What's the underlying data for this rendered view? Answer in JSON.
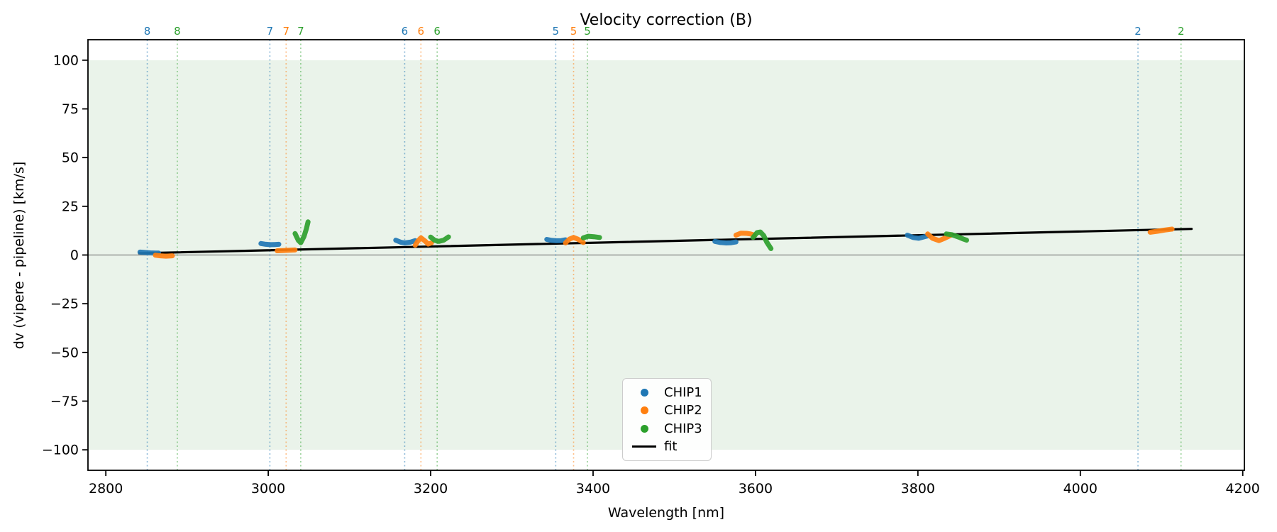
{
  "title": "Velocity correction (B)",
  "colors": {
    "chip1": "#1f77b4",
    "chip2": "#ff7f0e",
    "chip3": "#2ca02c",
    "fit": "#000000",
    "zero_line": "#808080",
    "band": "#eaf3ea",
    "frame": "#000000"
  },
  "legend": {
    "entries": [
      {
        "label": "CHIP1",
        "marker": "dot",
        "color": "#1f77b4"
      },
      {
        "label": "CHIP2",
        "marker": "dot",
        "color": "#ff7f0e"
      },
      {
        "label": "CHIP3",
        "marker": "dot",
        "color": "#2ca02c"
      },
      {
        "label": "fit",
        "marker": "line",
        "color": "#000000"
      }
    ]
  },
  "chart_data": {
    "type": "scatter",
    "title": "Velocity correction (B)",
    "xlabel": "Wavelength [nm]",
    "ylabel": "dv (vipere - pipeline) [km/s]",
    "xlim": [
      2778,
      4202
    ],
    "ylim": [
      -110.5,
      110.5
    ],
    "x_ticks": [
      2800,
      3000,
      3200,
      3400,
      3600,
      3800,
      4000,
      4200
    ],
    "y_ticks": [
      100,
      75,
      50,
      25,
      0,
      -25,
      -50,
      -75,
      -100
    ],
    "grid": false,
    "legend_position": "lower center",
    "shaded_band": {
      "ymin": -100,
      "ymax": 100,
      "color": "#eaf3ea"
    },
    "zero_line": {
      "y": 0,
      "color": "#808080"
    },
    "order_markers": [
      {
        "label": "8",
        "series": "CHIP1",
        "x": 2851
      },
      {
        "label": "8",
        "series": "CHIP3",
        "x": 2888
      },
      {
        "label": "7",
        "series": "CHIP1",
        "x": 3002
      },
      {
        "label": "7",
        "series": "CHIP2",
        "x": 3022
      },
      {
        "label": "7",
        "series": "CHIP3",
        "x": 3040
      },
      {
        "label": "6",
        "series": "CHIP1",
        "x": 3168
      },
      {
        "label": "6",
        "series": "CHIP2",
        "x": 3188
      },
      {
        "label": "6",
        "series": "CHIP3",
        "x": 3208
      },
      {
        "label": "5",
        "series": "CHIP1",
        "x": 3354
      },
      {
        "label": "5",
        "series": "CHIP2",
        "x": 3376
      },
      {
        "label": "5",
        "series": "CHIP3",
        "x": 3393
      },
      {
        "label": "2",
        "series": "CHIP1",
        "x": 4071
      },
      {
        "label": "2",
        "series": "CHIP3",
        "x": 4124
      }
    ],
    "series": [
      {
        "name": "CHIP1",
        "color": "#1f77b4",
        "segments": [
          [
            [
              2842,
              1.5
            ],
            [
              2848,
              1.3
            ],
            [
              2855,
              1.1
            ],
            [
              2861,
              1.0
            ],
            [
              2865,
              1.0
            ]
          ],
          [
            [
              2991,
              5.9
            ],
            [
              2997,
              5.5
            ],
            [
              3003,
              5.3
            ],
            [
              3008,
              5.4
            ],
            [
              3013,
              5.5
            ]
          ],
          [
            [
              3157,
              7.6
            ],
            [
              3163,
              6.6
            ],
            [
              3168,
              6.2
            ],
            [
              3175,
              6.6
            ],
            [
              3181,
              7.4
            ]
          ],
          [
            [
              3343,
              8.0
            ],
            [
              3349,
              7.5
            ],
            [
              3355,
              7.3
            ],
            [
              3361,
              7.4
            ],
            [
              3366,
              7.8
            ]
          ],
          [
            [
              3550,
              7.0
            ],
            [
              3557,
              6.4
            ],
            [
              3564,
              6.2
            ],
            [
              3570,
              6.3
            ],
            [
              3576,
              6.7
            ]
          ],
          [
            [
              3787,
              10.2
            ],
            [
              3794,
              9.0
            ],
            [
              3801,
              8.6
            ],
            [
              3808,
              9.4
            ],
            [
              3814,
              10.0
            ]
          ]
        ]
      },
      {
        "name": "CHIP2",
        "color": "#ff7f0e",
        "segments": [
          [
            [
              2861,
              -0.1
            ],
            [
              2867,
              -0.4
            ],
            [
              2874,
              -0.6
            ],
            [
              2882,
              -0.4
            ]
          ],
          [
            [
              3011,
              2.2
            ],
            [
              3017,
              2.3
            ],
            [
              3024,
              2.4
            ],
            [
              3033,
              2.6
            ]
          ],
          [
            [
              3181,
              5.0
            ],
            [
              3184,
              7.0
            ],
            [
              3188,
              8.8
            ],
            [
              3193,
              7.2
            ],
            [
              3197,
              5.6
            ],
            [
              3201,
              6.2
            ]
          ],
          [
            [
              3366,
              6.2
            ],
            [
              3371,
              8.2
            ],
            [
              3376,
              9.0
            ],
            [
              3381,
              8.2
            ],
            [
              3388,
              6.4
            ]
          ],
          [
            [
              3576,
              10.2
            ],
            [
              3582,
              11.2
            ],
            [
              3589,
              11.1
            ],
            [
              3594,
              10.8
            ],
            [
              3598,
              10.3
            ]
          ],
          [
            [
              3812,
              10.8
            ],
            [
              3818,
              8.6
            ],
            [
              3826,
              7.4
            ],
            [
              3833,
              8.6
            ],
            [
              3840,
              10.0
            ]
          ],
          [
            [
              4086,
              11.7
            ],
            [
              4095,
              12.2
            ],
            [
              4104,
              12.8
            ],
            [
              4113,
              13.3
            ]
          ]
        ]
      },
      {
        "name": "CHIP3",
        "color": "#2ca02c",
        "segments": [
          [
            [
              3033,
              11.0
            ],
            [
              3037,
              7.5
            ],
            [
              3040,
              6.3
            ],
            [
              3044,
              9.5
            ],
            [
              3047,
              13.5
            ],
            [
              3049,
              17.0
            ]
          ],
          [
            [
              3200,
              9.2
            ],
            [
              3205,
              7.5
            ],
            [
              3210,
              7.0
            ],
            [
              3216,
              7.6
            ],
            [
              3222,
              9.3
            ]
          ],
          [
            [
              3388,
              8.8
            ],
            [
              3394,
              9.6
            ],
            [
              3401,
              9.4
            ],
            [
              3408,
              9.0
            ]
          ],
          [
            [
              3597,
              9.0
            ],
            [
              3602,
              11.5
            ],
            [
              3606,
              11.8
            ],
            [
              3610,
              10.0
            ],
            [
              3614,
              6.5
            ],
            [
              3619,
              3.3
            ]
          ],
          [
            [
              3835,
              10.8
            ],
            [
              3842,
              10.4
            ],
            [
              3850,
              9.2
            ],
            [
              3856,
              8.2
            ],
            [
              3860,
              7.6
            ]
          ]
        ]
      }
    ],
    "fit_line": {
      "label": "fit",
      "color": "#000000",
      "points": [
        [
          2841,
          0.9
        ],
        [
          4137,
          13.4
        ]
      ]
    }
  }
}
